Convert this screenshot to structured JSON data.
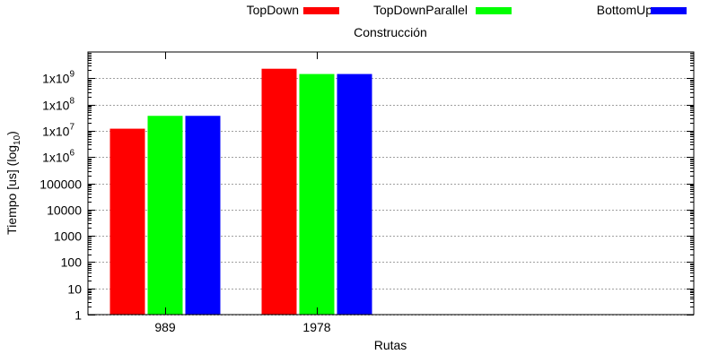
{
  "chart_data": {
    "type": "bar",
    "title": "Construcción",
    "xlabel": "Rutas",
    "ylabel": {
      "prefix": "Tiempo [us] (log",
      "subscript": "10",
      "suffix": ")"
    },
    "y_scale": "log10",
    "ylim": [
      1,
      10000000000
    ],
    "grid": true,
    "legend_position": "top",
    "categories": [
      "989",
      "1978"
    ],
    "series": [
      {
        "name": "TopDown",
        "color": "#ff0000",
        "values": [
          12000000,
          2300000000
        ]
      },
      {
        "name": "TopDownParallel",
        "color": "#00ff00",
        "values": [
          37000000,
          1450000000
        ]
      },
      {
        "name": "BottomUp",
        "color": "#0000ff",
        "values": [
          37000000,
          1450000000
        ]
      }
    ],
    "y_ticks": [
      {
        "value": 1,
        "label": "1"
      },
      {
        "value": 10,
        "label": "10"
      },
      {
        "value": 100,
        "label": "100"
      },
      {
        "value": 1000,
        "label": "1000"
      },
      {
        "value": 10000,
        "label": "10000"
      },
      {
        "value": 100000,
        "label": "100000"
      },
      {
        "value": 1000000,
        "base": "1x10",
        "exp": "6"
      },
      {
        "value": 10000000,
        "base": "1x10",
        "exp": "7"
      },
      {
        "value": 100000000,
        "base": "1x10",
        "exp": "8"
      },
      {
        "value": 1000000000,
        "base": "1x10",
        "exp": "9"
      }
    ]
  }
}
